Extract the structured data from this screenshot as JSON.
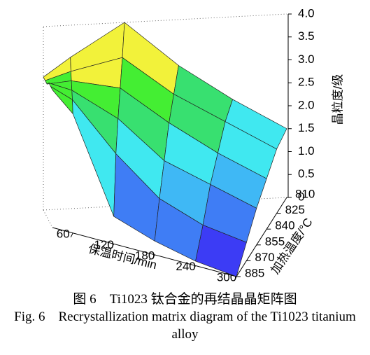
{
  "chart_data": {
    "type": "surface",
    "x": [
      30,
      60,
      120,
      180,
      240,
      300
    ],
    "y": [
      810,
      825,
      840,
      855,
      870,
      885
    ],
    "values": [
      [
        2.9,
        3.3,
        4.0,
        3.0,
        2.2,
        1.5
      ],
      [
        2.9,
        3.1,
        3.4,
        2.6,
        2.0,
        1.4
      ],
      [
        2.9,
        3.0,
        2.9,
        2.2,
        1.6,
        1.1
      ],
      [
        3.0,
        2.9,
        2.4,
        1.6,
        1.2,
        0.8
      ],
      [
        3.0,
        2.8,
        1.8,
        1.0,
        0.6,
        0.4
      ],
      [
        3.0,
        2.6,
        0.6,
        0.3,
        0.1,
        0
      ]
    ],
    "xlim": [
      30,
      300
    ],
    "xticks": [
      60,
      120,
      180,
      240,
      300
    ],
    "ylim": [
      810,
      885
    ],
    "yticks": [
      810,
      825,
      840,
      855,
      870,
      885
    ],
    "zlim": [
      0,
      4
    ],
    "zticks": [
      0,
      0.5,
      {
        "value": 1,
        "label": "1.0"
      },
      1.5,
      {
        "value": 2,
        "label": "2.0"
      },
      2.5,
      {
        "value": 3,
        "label": "3.0"
      },
      3.5,
      {
        "value": 4,
        "label": "4.0"
      }
    ],
    "colors": [
      "#3c3cf5",
      "#3f7df5",
      "#3fb8f5",
      "#40e8f0",
      "#38e070",
      "#44ee33",
      "#f2f23a",
      "#f7a830",
      "#f03535"
    ],
    "xlabel": "保温时间/min",
    "ylabel": "加热温度/°C",
    "zlabel": "晶粒度/级"
  },
  "caption": {
    "zh": "图 6　Ti1023 钛合金的再结晶晶矩阵图",
    "en": "Fig. 6　Recrystallization matrix diagram of the Ti1023 titanium alloy"
  }
}
